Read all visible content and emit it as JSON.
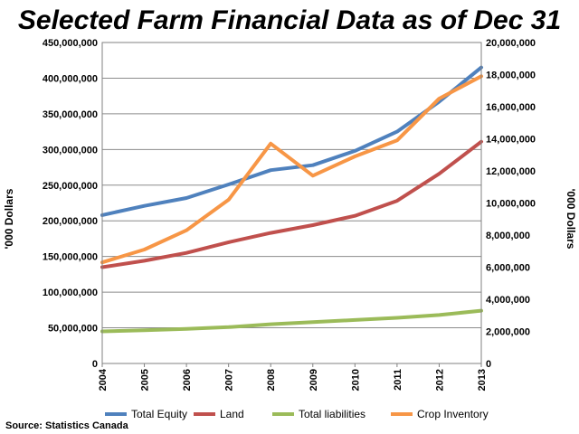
{
  "chart_data": {
    "type": "line",
    "title": "Selected Farm Financial Data as of Dec 31",
    "source": "Source: Statistics Canada",
    "x": [
      "2004",
      "2005",
      "2006",
      "2007",
      "2008",
      "2009",
      "2010",
      "2011",
      "2012",
      "2013"
    ],
    "y_left": {
      "label": "'000 Dollars",
      "min": 0,
      "max": 450000000,
      "step": 50000000,
      "ticks": [
        "0",
        "50,000,000",
        "100,000,000",
        "150,000,000",
        "200,000,000",
        "250,000,000",
        "300,000,000",
        "350,000,000",
        "400,000,000",
        "450,000,000"
      ]
    },
    "y_right": {
      "label": "'000 Dollars",
      "min": 0,
      "max": 20000000,
      "step": 2000000,
      "ticks": [
        "0",
        "2,000,000",
        "4,000,000",
        "6,000,000",
        "8,000,000",
        "10,000,000",
        "12,000,000",
        "14,000,000",
        "16,000,000",
        "18,000,000",
        "20,000,000"
      ]
    },
    "grid": true,
    "legend_position": "bottom",
    "series": [
      {
        "name": "Total Equity",
        "axis": "left",
        "color": "#4f81bd",
        "values": [
          208000000,
          221000000,
          232000000,
          251000000,
          271000000,
          278000000,
          298000000,
          325000000,
          367000000,
          415000000
        ]
      },
      {
        "name": "Land",
        "axis": "left",
        "color": "#c0504d",
        "values": [
          135000000,
          144000000,
          155000000,
          170000000,
          183000000,
          194000000,
          207000000,
          228000000,
          266000000,
          311000000
        ]
      },
      {
        "name": "Total liabilities",
        "axis": "left",
        "color": "#9bbb59",
        "values": [
          45000000,
          46500000,
          48500000,
          51000000,
          55000000,
          58000000,
          61000000,
          64000000,
          68000000,
          74000000
        ]
      },
      {
        "name": "Crop Inventory",
        "axis": "right",
        "color": "#f79646",
        "values": [
          6300000,
          7100000,
          8300000,
          10200000,
          13700000,
          11700000,
          12900000,
          13900000,
          16500000,
          17900000
        ]
      }
    ]
  }
}
